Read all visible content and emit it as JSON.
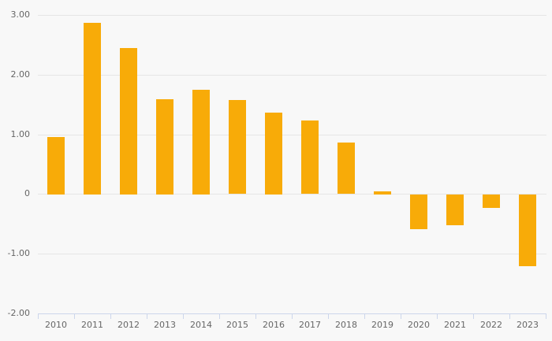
{
  "chart_data": {
    "type": "bar",
    "title": "",
    "xlabel": "",
    "ylabel": "",
    "categories": [
      "2010",
      "2011",
      "2012",
      "2013",
      "2014",
      "2015",
      "2016",
      "2017",
      "2018",
      "2019",
      "2020",
      "2021",
      "2022",
      "2023"
    ],
    "values": [
      0.96,
      2.87,
      2.45,
      1.59,
      1.75,
      1.57,
      1.37,
      1.23,
      0.86,
      0.05,
      -0.58,
      -0.52,
      -0.23,
      -1.2
    ],
    "ylim": [
      -2,
      3
    ],
    "yticks": [
      {
        "value": 3,
        "label": "3.00"
      },
      {
        "value": 2,
        "label": "2.00"
      },
      {
        "value": 1,
        "label": "1.00"
      },
      {
        "value": 0,
        "label": "0"
      },
      {
        "value": -1,
        "label": "-1.00"
      },
      {
        "value": -2,
        "label": "-2.00"
      }
    ],
    "grid": true,
    "legend": false
  },
  "colors": {
    "bar": "#f8ab08",
    "background": "#f8f8f8",
    "gridline": "#e6e6e6",
    "axis": "#ccd6eb",
    "label": "#666666"
  }
}
